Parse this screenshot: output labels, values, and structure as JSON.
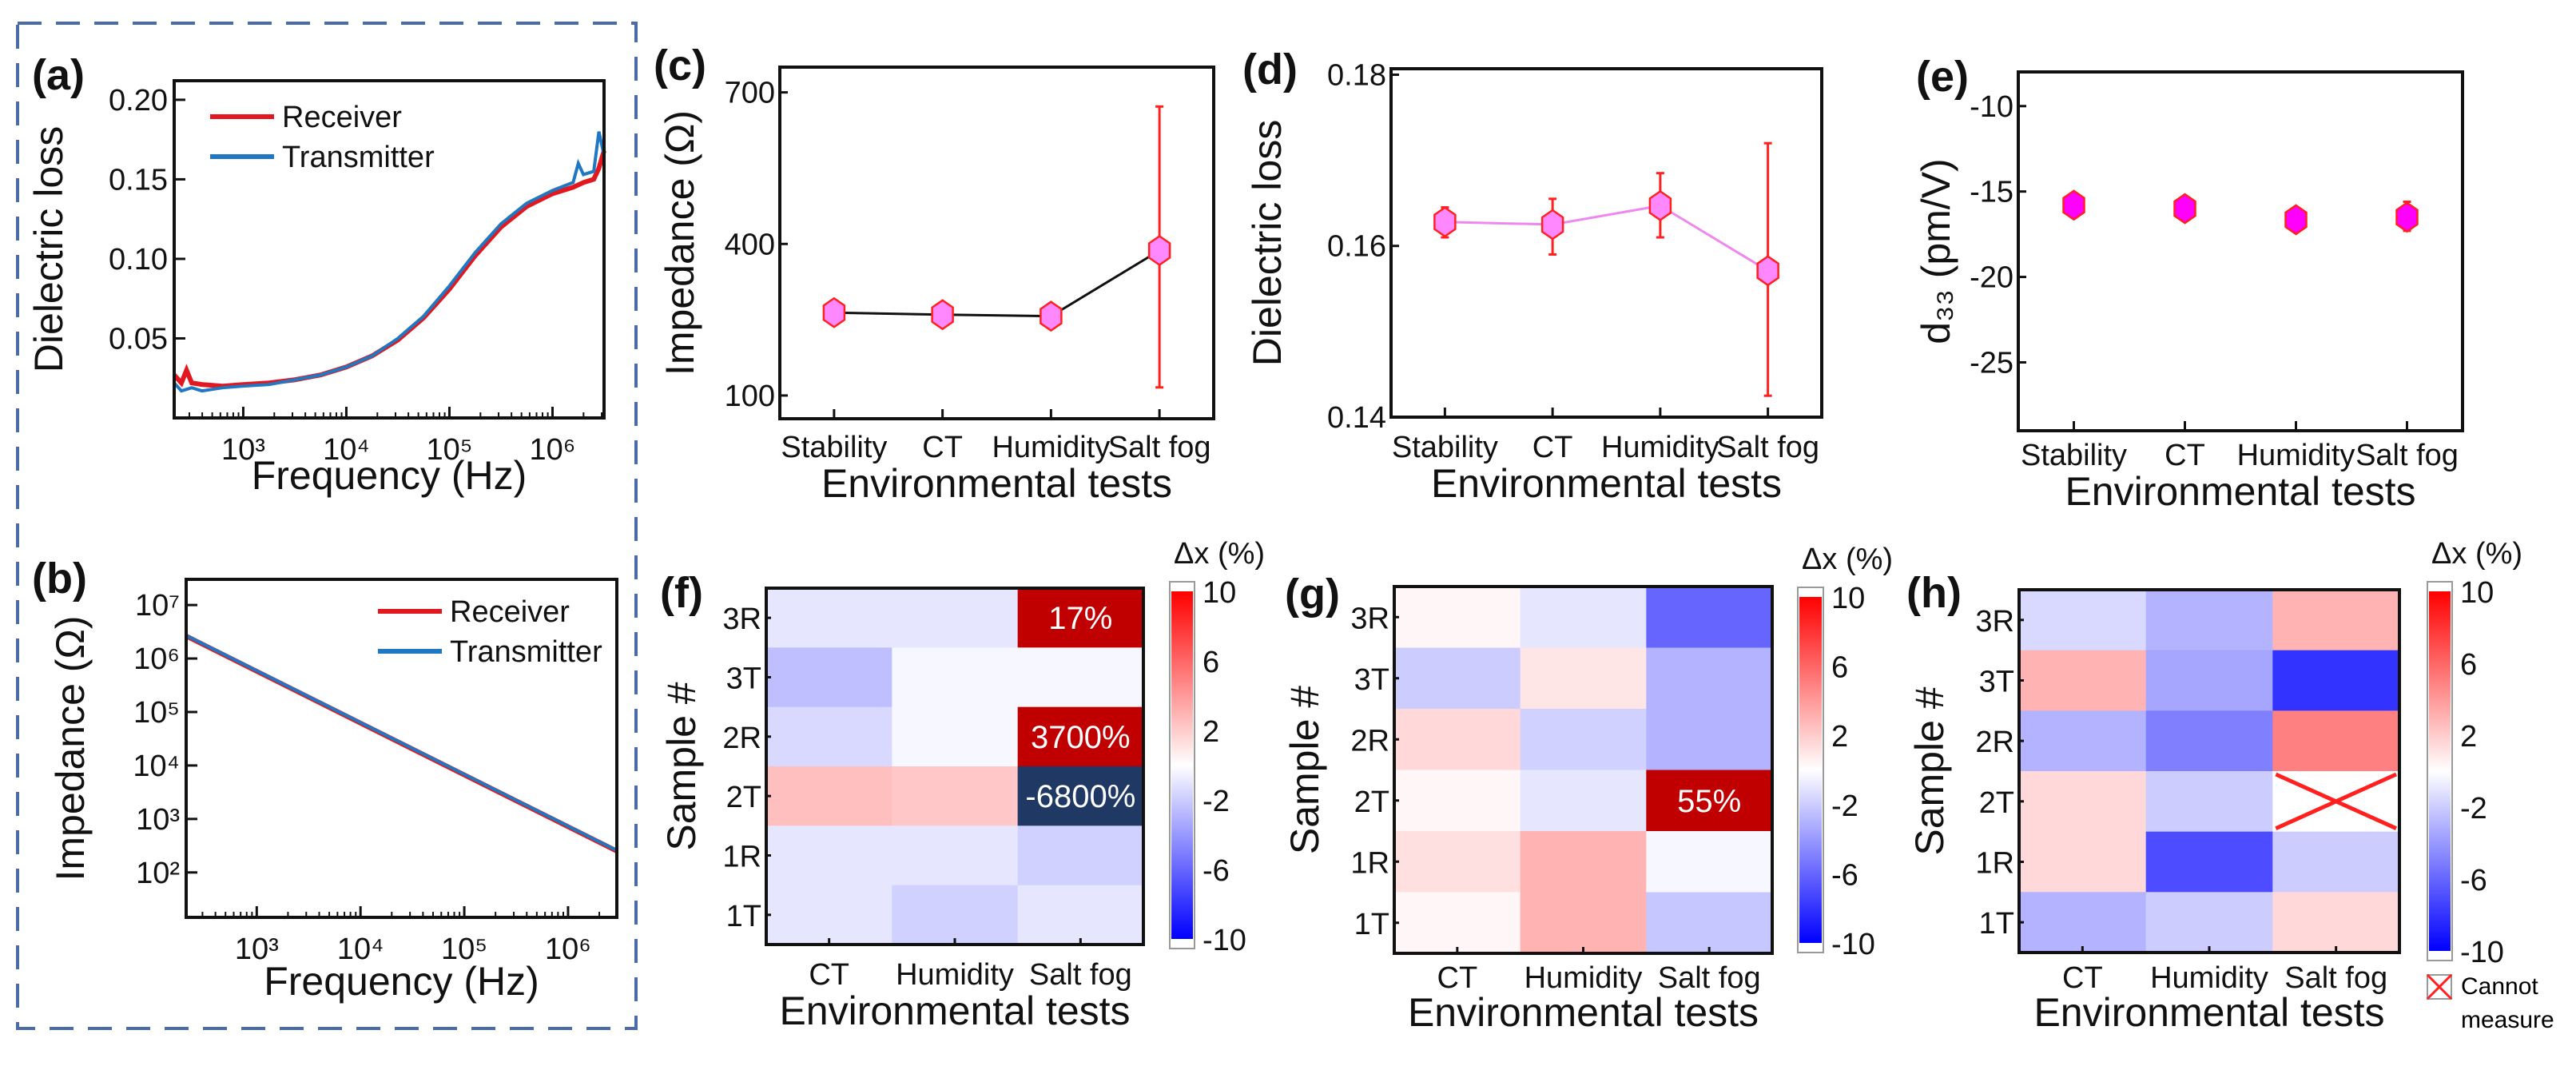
{
  "panel_labels": {
    "a": "(a)",
    "b": "(b)",
    "c": "(c)",
    "d": "(d)",
    "e": "(e)",
    "f": "(f)",
    "g": "(g)",
    "h": "(h)"
  },
  "chart_data": [
    {
      "id": "a",
      "type": "line",
      "xlabel": "Frequency (Hz)",
      "ylabel": "Dielectric loss",
      "xscale": "log",
      "xlim_log10": [
        2.33,
        6.5
      ],
      "ylim": [
        0,
        0.212
      ],
      "xticks_log10": [
        3,
        4,
        5,
        6
      ],
      "xtick_labels": [
        "10³",
        "10⁴",
        "10⁵",
        "10⁶"
      ],
      "yticks": [
        0.05,
        0.1,
        0.15,
        0.2
      ],
      "ytick_labels": [
        "0.05",
        "0.10",
        "0.15",
        "0.20"
      ],
      "legend_position": "top-left",
      "series": [
        {
          "name": "Receiver",
          "color": "#e3171f",
          "points": [
            [
              2.33,
              0.027
            ],
            [
              2.4,
              0.022
            ],
            [
              2.45,
              0.03
            ],
            [
              2.5,
              0.022
            ],
            [
              2.6,
              0.021
            ],
            [
              2.8,
              0.02
            ],
            [
              3,
              0.021
            ],
            [
              3.25,
              0.022
            ],
            [
              3.5,
              0.024
            ],
            [
              3.75,
              0.027
            ],
            [
              4,
              0.032
            ],
            [
              4.25,
              0.039
            ],
            [
              4.5,
              0.049
            ],
            [
              4.75,
              0.063
            ],
            [
              5,
              0.081
            ],
            [
              5.25,
              0.102
            ],
            [
              5.5,
              0.12
            ],
            [
              5.75,
              0.133
            ],
            [
              6,
              0.141
            ],
            [
              6.2,
              0.145
            ],
            [
              6.3,
              0.148
            ],
            [
              6.4,
              0.15
            ],
            [
              6.45,
              0.157
            ],
            [
              6.5,
              0.168
            ]
          ]
        },
        {
          "name": "Transmitter",
          "color": "#1f78c1",
          "points": [
            [
              2.33,
              0.022
            ],
            [
              2.4,
              0.017
            ],
            [
              2.5,
              0.019
            ],
            [
              2.6,
              0.017
            ],
            [
              2.8,
              0.019
            ],
            [
              3,
              0.02
            ],
            [
              3.25,
              0.021
            ],
            [
              3.5,
              0.024
            ],
            [
              3.75,
              0.027
            ],
            [
              4,
              0.032
            ],
            [
              4.25,
              0.039
            ],
            [
              4.5,
              0.05
            ],
            [
              4.75,
              0.064
            ],
            [
              5,
              0.083
            ],
            [
              5.25,
              0.104
            ],
            [
              5.5,
              0.122
            ],
            [
              5.75,
              0.135
            ],
            [
              6,
              0.143
            ],
            [
              6.2,
              0.148
            ],
            [
              6.25,
              0.16
            ],
            [
              6.3,
              0.153
            ],
            [
              6.4,
              0.155
            ],
            [
              6.45,
              0.18
            ],
            [
              6.5,
              0.165
            ]
          ]
        }
      ]
    },
    {
      "id": "b",
      "type": "line",
      "xlabel": "Frequency (Hz)",
      "ylabel": "Impedance (Ω)",
      "xscale": "log",
      "yscale": "log",
      "xlim_log10": [
        2.32,
        6.47
      ],
      "ylim_log10": [
        1.16,
        7.48
      ],
      "xticks_log10": [
        3,
        4,
        5,
        6
      ],
      "xtick_labels": [
        "10³",
        "10⁴",
        "10⁵",
        "10⁶"
      ],
      "yticks_log10": [
        2,
        3,
        4,
        5,
        6,
        7
      ],
      "ytick_labels": [
        "10²",
        "10³",
        "10⁴",
        "10⁵",
        "10⁶",
        "10⁷"
      ],
      "legend_position": "top-right",
      "series": [
        {
          "name": "Receiver",
          "color": "#e3171f",
          "points": [
            [
              2.32,
              6.42
            ],
            [
              6.47,
              2.4
            ]
          ]
        },
        {
          "name": "Transmitter",
          "color": "#1f78c1",
          "points": [
            [
              2.32,
              6.43
            ],
            [
              6.47,
              2.41
            ]
          ]
        }
      ]
    },
    {
      "id": "c",
      "type": "scatter-errorbar",
      "xlabel": "Environmental tests",
      "ylabel": "Impedance (Ω)",
      "categories": [
        "Stability",
        "CT",
        "Humidity",
        "Salt fog"
      ],
      "values": [
        264,
        260,
        257,
        387
      ],
      "errors": [
        [
          241,
          287
        ],
        [
          238,
          282
        ],
        [
          235,
          279
        ],
        [
          116,
          672
        ]
      ],
      "ylim": [
        54,
        750
      ],
      "yticks": [
        100,
        400,
        700
      ],
      "ytick_labels": [
        "100",
        "400",
        "700"
      ],
      "line_color": "#111111",
      "marker_fill": "#ff88ff",
      "marker_edge": "#ff2020"
    },
    {
      "id": "d",
      "type": "scatter-errorbar",
      "xlabel": "Environmental tests",
      "ylabel": "Dielectric loss",
      "categories": [
        "Stability",
        "CT",
        "Humidity",
        "Salt fog"
      ],
      "values": [
        0.1628,
        0.1625,
        0.1647,
        0.1571
      ],
      "errors": [
        [
          0.161,
          0.1645
        ],
        [
          0.159,
          0.1655
        ],
        [
          0.161,
          0.1685
        ],
        [
          0.1425,
          0.172
        ]
      ],
      "ylim": [
        0.14,
        0.1807
      ],
      "yticks": [
        0.14,
        0.16,
        0.18
      ],
      "ytick_labels": [
        "0.14",
        "0.16",
        "0.18"
      ],
      "line_color": "#ee88ee",
      "marker_fill": "#ff88ff",
      "marker_edge": "#ff2020"
    },
    {
      "id": "e",
      "type": "scatter-errorbar",
      "xlabel": "Environmental tests",
      "ylabel": "d₃₃ (pm/V)",
      "categories": [
        "Stability",
        "CT",
        "Humidity",
        "Salt fog"
      ],
      "values": [
        -15.8,
        -16.0,
        -16.65,
        -16.5
      ],
      "errors": [
        [
          -16.4,
          -15.2
        ],
        [
          -16.5,
          -15.5
        ],
        [
          -17.2,
          -16.1
        ],
        [
          -17.3,
          -15.6
        ]
      ],
      "ylim": [
        -29,
        -8
      ],
      "yticks": [
        -25,
        -20,
        -15,
        -10
      ],
      "ytick_labels": [
        "-25",
        "-20",
        "-15",
        "-10"
      ],
      "line_color": null,
      "marker_fill": "#ff00ff",
      "marker_edge": "#ff2020"
    },
    {
      "id": "f",
      "type": "heatmap",
      "xlabel": "Environmental tests",
      "ylabel": "Sample #",
      "columns": [
        "CT",
        "Humidity",
        "Salt fog"
      ],
      "rows": [
        "3R",
        "3T",
        "2R",
        "2T",
        "1R",
        "1T"
      ],
      "values": [
        [
          -1,
          -1,
          17
        ],
        [
          -2.5,
          -0.3,
          -0.3
        ],
        [
          -1.5,
          -0.3,
          3700
        ],
        [
          2.5,
          2.2,
          -6800
        ],
        [
          -1,
          -1,
          -1.8
        ],
        [
          -1,
          -1.8,
          -1
        ]
      ],
      "annotations": [
        [
          "",
          "",
          "17%"
        ],
        [
          "",
          "",
          ""
        ],
        [
          "",
          "",
          "3700%"
        ],
        [
          "",
          "",
          "-6800%"
        ],
        [
          "",
          "",
          ""
        ],
        [
          "",
          "",
          ""
        ]
      ],
      "colorbar": {
        "title": "Δx (%)",
        "range": [
          -10,
          10
        ],
        "ticks": [
          10,
          6,
          2,
          -2,
          -6,
          -10
        ],
        "tick_labels": [
          "10",
          "6",
          "2",
          "-2",
          "-6",
          "-10"
        ],
        "low_color": "#0000ff",
        "mid_color": "#ffffff",
        "high_color": "#ff0000"
      },
      "overflow_colors": {
        "high": "#c00000",
        "low": "#1f3864"
      }
    },
    {
      "id": "g",
      "type": "heatmap",
      "xlabel": "Environmental tests",
      "ylabel": "Sample #",
      "columns": [
        "CT",
        "Humidity",
        "Salt fog"
      ],
      "rows": [
        "3R",
        "3T",
        "2R",
        "2T",
        "1R",
        "1T"
      ],
      "values": [
        [
          0.3,
          -1,
          -6
        ],
        [
          -2,
          1,
          -3
        ],
        [
          1.5,
          -1.8,
          -3
        ],
        [
          0.3,
          -1,
          55
        ],
        [
          1.2,
          3,
          -0.3
        ],
        [
          0.3,
          3,
          -2.2
        ]
      ],
      "annotations": [
        [
          "",
          "",
          ""
        ],
        [
          "",
          "",
          ""
        ],
        [
          "",
          "",
          ""
        ],
        [
          "",
          "",
          "55%"
        ],
        [
          "",
          "",
          ""
        ],
        [
          "",
          "",
          ""
        ]
      ],
      "colorbar": {
        "title": "Δx (%)",
        "range": [
          -10,
          10
        ],
        "ticks": [
          10,
          6,
          2,
          -2,
          -6,
          -10
        ],
        "tick_labels": [
          "10",
          "6",
          "2",
          "-2",
          "-6",
          "-10"
        ],
        "low_color": "#0000ff",
        "mid_color": "#ffffff",
        "high_color": "#ff0000"
      },
      "overflow_colors": {
        "high": "#c00000",
        "low": "#1f3864"
      }
    },
    {
      "id": "h",
      "type": "heatmap",
      "xlabel": "Environmental tests",
      "ylabel": "Sample #",
      "columns": [
        "CT",
        "Humidity",
        "Salt fog"
      ],
      "rows": [
        "3R",
        "3T",
        "2R",
        "2T",
        "1R",
        "1T"
      ],
      "values": [
        [
          -1.5,
          -3,
          3
        ],
        [
          3,
          -3.5,
          -8
        ],
        [
          -3,
          -5,
          5
        ],
        [
          1.5,
          -2,
          null
        ],
        [
          1.5,
          -7,
          -2
        ],
        [
          -3,
          -2,
          1.5
        ]
      ],
      "annotations": [
        [
          "",
          "",
          ""
        ],
        [
          "",
          "",
          ""
        ],
        [
          "",
          "",
          ""
        ],
        [
          "",
          "",
          ""
        ],
        [
          "",
          "",
          ""
        ],
        [
          "",
          "",
          ""
        ]
      ],
      "colorbar": {
        "title": "Δx (%)",
        "range": [
          -10,
          10
        ],
        "ticks": [
          10,
          6,
          2,
          -2,
          -6,
          -10
        ],
        "tick_labels": [
          "10",
          "6",
          "2",
          "-2",
          "-6",
          "-10"
        ],
        "low_color": "#0000ff",
        "mid_color": "#ffffff",
        "high_color": "#ff0000"
      },
      "overflow_colors": {
        "high": "#c00000",
        "low": "#1f3864"
      },
      "missing_legend": {
        "line1": "Cannot",
        "line2": "measure",
        "color": "#ff2020"
      }
    }
  ],
  "colors": {
    "dashed_box": "#4a6aa8"
  }
}
